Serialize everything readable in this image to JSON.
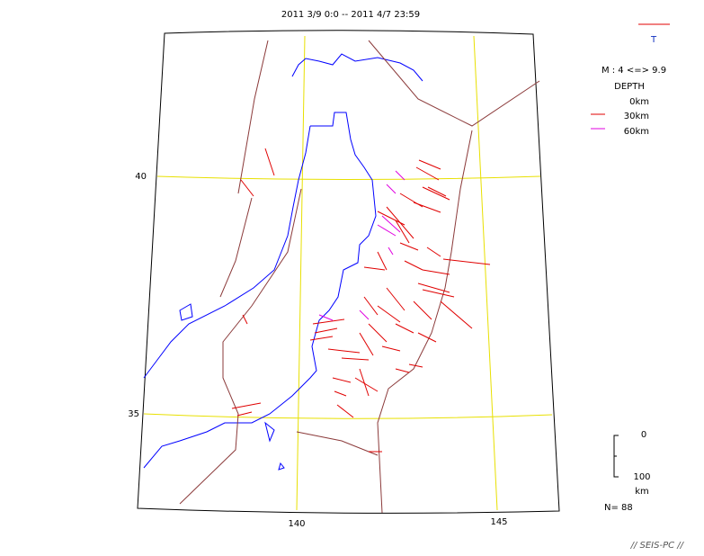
{
  "header": {
    "title": "2011 3/9 0:0 -- 2011 4/7 23:59"
  },
  "legend": {
    "symbol": "T",
    "magnitude": "M : 4 <=> 9.9",
    "depth_title": "DEPTH",
    "depths": [
      "0km",
      "30km",
      "60km"
    ]
  },
  "map": {
    "lat_labels": [
      "40",
      "35"
    ],
    "lon_labels": [
      "140",
      "145"
    ]
  },
  "scale": {
    "top": "0",
    "bottom": "100",
    "unit": "km"
  },
  "count": "N= 88",
  "footer": "// SEIS-PC //"
}
